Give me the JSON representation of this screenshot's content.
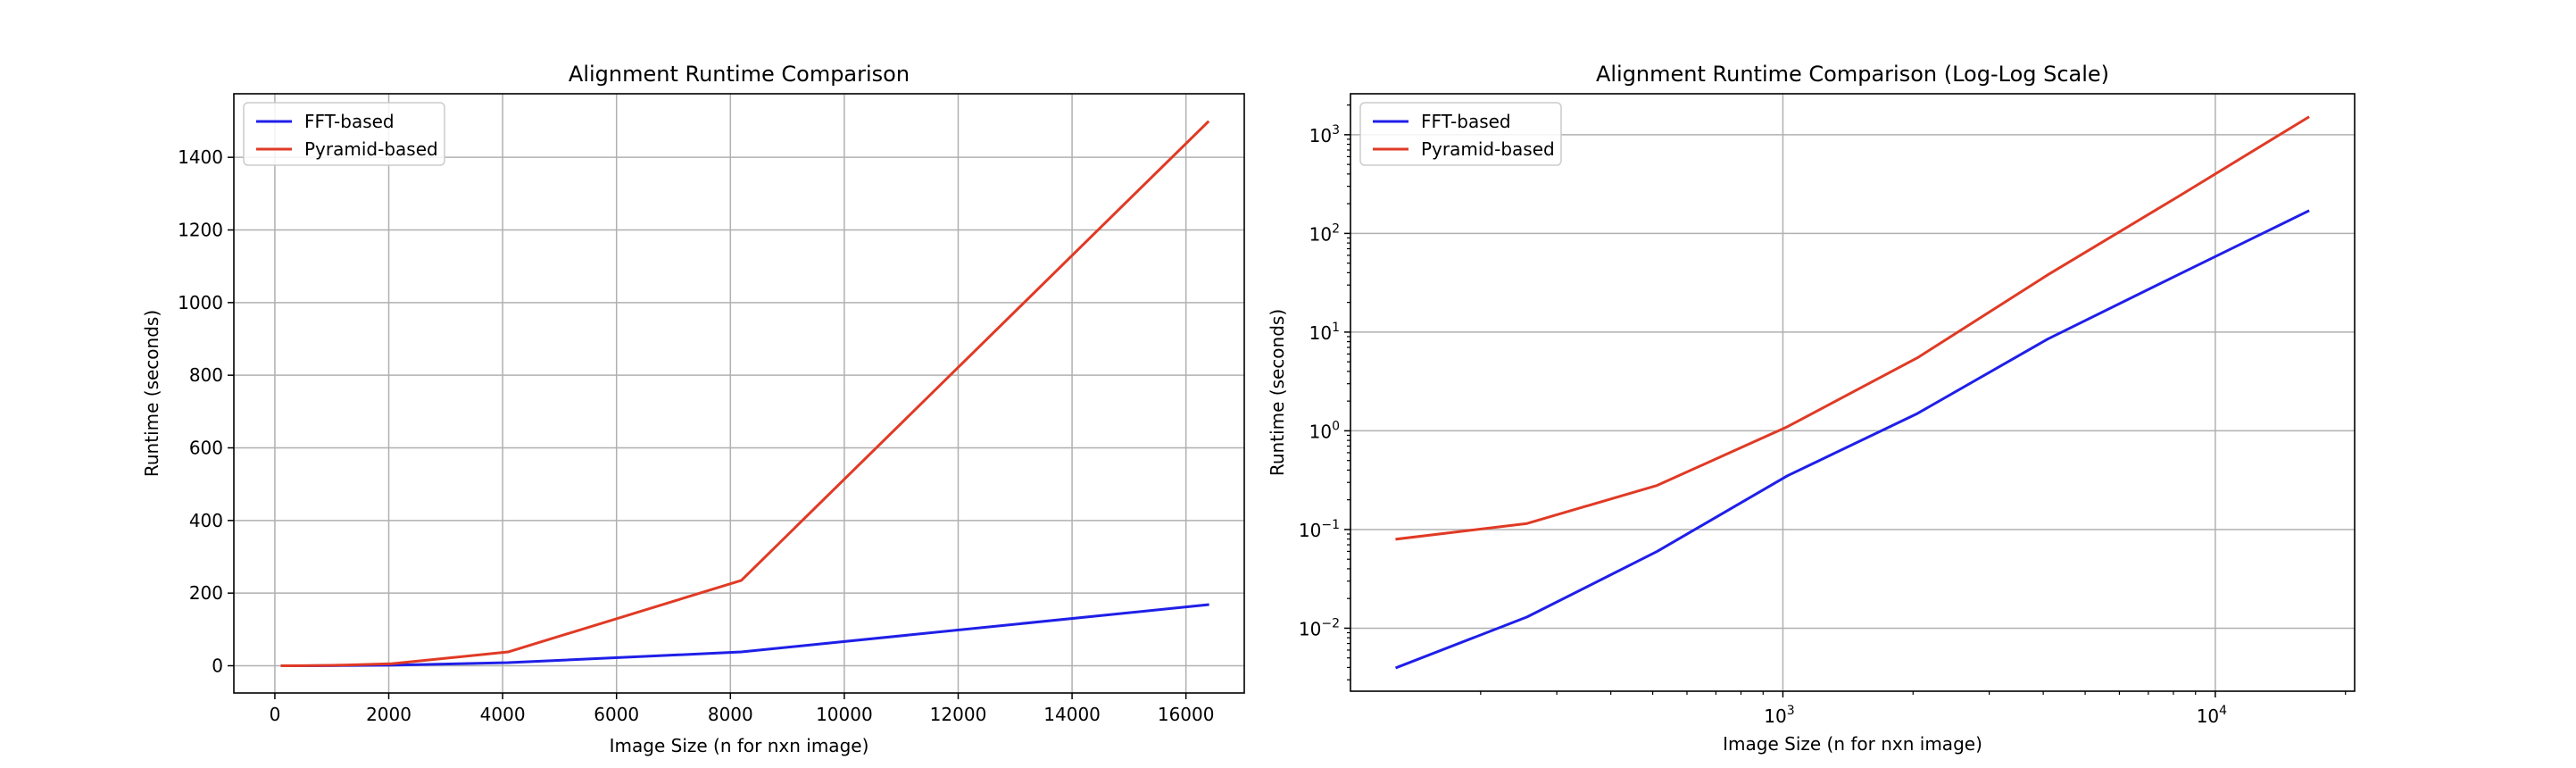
{
  "chart_data": [
    {
      "type": "line",
      "title": "Alignment Runtime Comparison",
      "xlabel": "Image Size (n for nxn image)",
      "ylabel": "Runtime (seconds)",
      "xscale": "linear",
      "yscale": "linear",
      "xlim": [
        -720,
        17024
      ],
      "ylim": [
        -75,
        1575
      ],
      "xticks": [
        0,
        2000,
        4000,
        6000,
        8000,
        10000,
        12000,
        14000,
        16000
      ],
      "xtick_labels": [
        "0",
        "2000",
        "4000",
        "6000",
        "8000",
        "10000",
        "12000",
        "14000",
        "16000"
      ],
      "yticks": [
        0,
        200,
        400,
        600,
        800,
        1000,
        1200,
        1400
      ],
      "ytick_labels": [
        "0",
        "200",
        "400",
        "600",
        "800",
        "1000",
        "1200",
        "1400"
      ],
      "grid": true,
      "legend_position": "top-left",
      "x": [
        128,
        256,
        512,
        1024,
        2048,
        4096,
        8192,
        16384
      ],
      "series": [
        {
          "name": "FFT-based",
          "color": "#1f1fe8",
          "values": [
            0.004,
            0.013,
            0.06,
            0.35,
            1.5,
            8.5,
            38,
            168
          ]
        },
        {
          "name": "Pyramid-based",
          "color": "#e03a25",
          "values": [
            0.08,
            0.115,
            0.28,
            1.1,
            5.5,
            38,
            235,
            1497
          ]
        }
      ]
    },
    {
      "type": "line",
      "title": "Alignment Runtime Comparison (Log-Log Scale)",
      "xlabel": "Image Size (n for nxn image)",
      "ylabel": "Runtime (seconds)",
      "xscale": "log",
      "yscale": "log",
      "xlim": [
        100,
        21000
      ],
      "ylim": [
        0.0023,
        2600
      ],
      "xticks": [
        1000,
        10000
      ],
      "xtick_labels": [
        {
          "base": "10",
          "exp": "3"
        },
        {
          "base": "10",
          "exp": "4"
        }
      ],
      "yticks": [
        0.01,
        0.1,
        1,
        10,
        100,
        1000
      ],
      "ytick_labels": [
        {
          "base": "10",
          "exp": "−2"
        },
        {
          "base": "10",
          "exp": "−1"
        },
        {
          "base": "10",
          "exp": "0"
        },
        {
          "base": "10",
          "exp": "1"
        },
        {
          "base": "10",
          "exp": "2"
        },
        {
          "base": "10",
          "exp": "3"
        }
      ],
      "grid": true,
      "legend_position": "top-left",
      "x": [
        128,
        256,
        512,
        1024,
        2048,
        4096,
        8192,
        16384
      ],
      "series": [
        {
          "name": "FFT-based",
          "color": "#1f1fe8",
          "values": [
            0.004,
            0.013,
            0.06,
            0.35,
            1.5,
            8.5,
            38,
            168
          ]
        },
        {
          "name": "Pyramid-based",
          "color": "#e03a25",
          "values": [
            0.08,
            0.115,
            0.28,
            1.1,
            5.5,
            38,
            235,
            1497
          ]
        }
      ]
    }
  ]
}
